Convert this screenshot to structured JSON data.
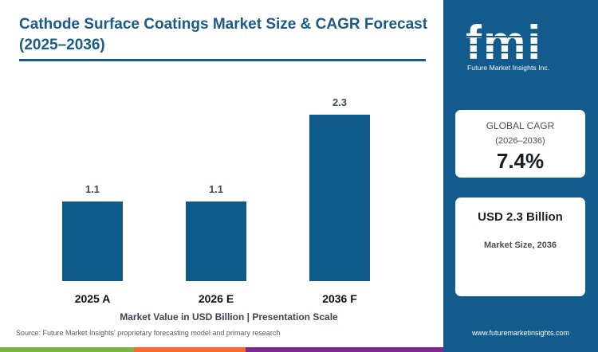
{
  "header": {
    "title": "Cathode Surface Coatings Market Size & CAGR Forecast (2025–2036)"
  },
  "chart_data": {
    "type": "bar",
    "categories": [
      "2025 A",
      "2026 E",
      "2036 F"
    ],
    "values": [
      1.1,
      1.1,
      2.3
    ],
    "value_labels": [
      "1.1",
      "1.1",
      "2.3"
    ],
    "title": "Cathode Surface Coatings Market Size & CAGR Forecast (2025–2036)",
    "xlabel": "Market Value in USD Billion | Presentation Scale",
    "ylabel": "",
    "ylim": [
      0,
      2.3
    ],
    "grid": false,
    "bar_color": "#0d5a8a"
  },
  "footer": {
    "axis_note": "Market Value in USD Billion | Presentation Scale",
    "source": "Source: Future Market Insights' proprietary forecasting model and primary research"
  },
  "sidebar": {
    "logo_text": "fmi",
    "logo_tagline": "Future Market Insights Inc.",
    "cagr": {
      "label": "GLOBAL CAGR",
      "period": "(2026–2036)",
      "value": "7.4%"
    },
    "market_size": {
      "value": "USD 2.3 Billion",
      "label": "Market Size, 2036"
    },
    "website": "www.futuremarketinsights.com"
  },
  "colors": {
    "brand_blue": "#125b8c",
    "title_blue": "#1a5b8a",
    "strip_green": "#7ab547",
    "strip_orange": "#f26b2f",
    "strip_purple": "#7a2d8f"
  }
}
